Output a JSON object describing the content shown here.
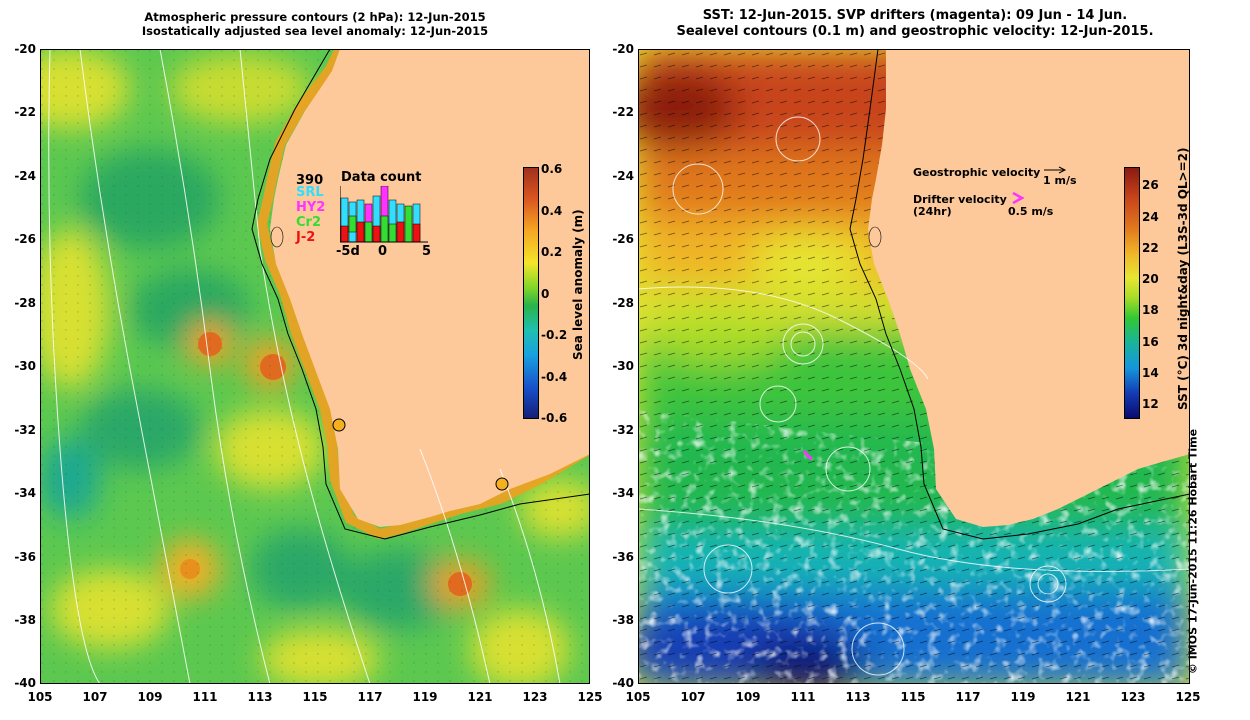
{
  "left_panel": {
    "title_line1": "Atmospheric pressure contours (2 hPa): 12-Jun-2015",
    "title_line2": "Isostatically adjusted sea level anomaly: 12-Jun-2015",
    "colorbar_label": "Sea level anomaly (m)",
    "colorbar_ticks": [
      "0.6",
      "0.4",
      "0.2",
      "0",
      "-0.2",
      "-0.4",
      "-0.6"
    ],
    "colorbar_colors": [
      "#a0301e",
      "#d95420",
      "#f5a623",
      "#f5e52a",
      "#7fd62a",
      "#2ab34a",
      "#1fc0b0",
      "#18a0e0",
      "#1850c8",
      "#141e78"
    ],
    "inset": {
      "count": "390",
      "title": "Data count",
      "legend": [
        {
          "label": "SRL",
          "color": "#33ddff"
        },
        {
          "label": "HY2",
          "color": "#ff33ff"
        },
        {
          "label": "Cr2",
          "color": "#33dd33"
        },
        {
          "label": "J-2",
          "color": "#ee1111"
        }
      ],
      "x_ticks": [
        "-5d",
        "0",
        "5"
      ]
    }
  },
  "right_panel": {
    "title_line1": "SST: 12-Jun-2015. SVP drifters (magenta): 09 Jun - 14 Jun.",
    "title_line2": "Sealevel contours (0.1 m) and geostrophic velocity: 12-Jun-2015.",
    "colorbar_label": "SST (°C) 3d night&day (L3S-3d QL>=2)",
    "colorbar_ticks": [
      "26",
      "24",
      "22",
      "20",
      "18",
      "16",
      "14",
      "12"
    ],
    "colorbar_colors": [
      "#8b1a10",
      "#c8441a",
      "#e0781e",
      "#f0b428",
      "#e6e632",
      "#a8dc28",
      "#32c832",
      "#19b49b",
      "#1496dc",
      "#143cb4",
      "#0a0a6e"
    ],
    "geo_label": "Geostrophic velocity",
    "geo_scale": "1 m/s",
    "drifter_label": "Drifter velocity",
    "drifter_sub": "(24hr)",
    "drifter_scale": "0.5 m/s",
    "copyright": "© IMOS 17-Jun-2015 11:26 Hobart Time"
  },
  "axes": {
    "lat_ticks": [
      "-20",
      "-22",
      "-24",
      "-26",
      "-28",
      "-30",
      "-32",
      "-34",
      "-36",
      "-38",
      "-40"
    ],
    "lon_ticks": [
      "105",
      "107",
      "109",
      "111",
      "113",
      "115",
      "117",
      "119",
      "121",
      "123",
      "125"
    ]
  },
  "colors": {
    "land": "#fdc99b",
    "sea_green": "#58c84a",
    "sea_yellow": "#d8e032",
    "drifter": "#ff33ff"
  }
}
